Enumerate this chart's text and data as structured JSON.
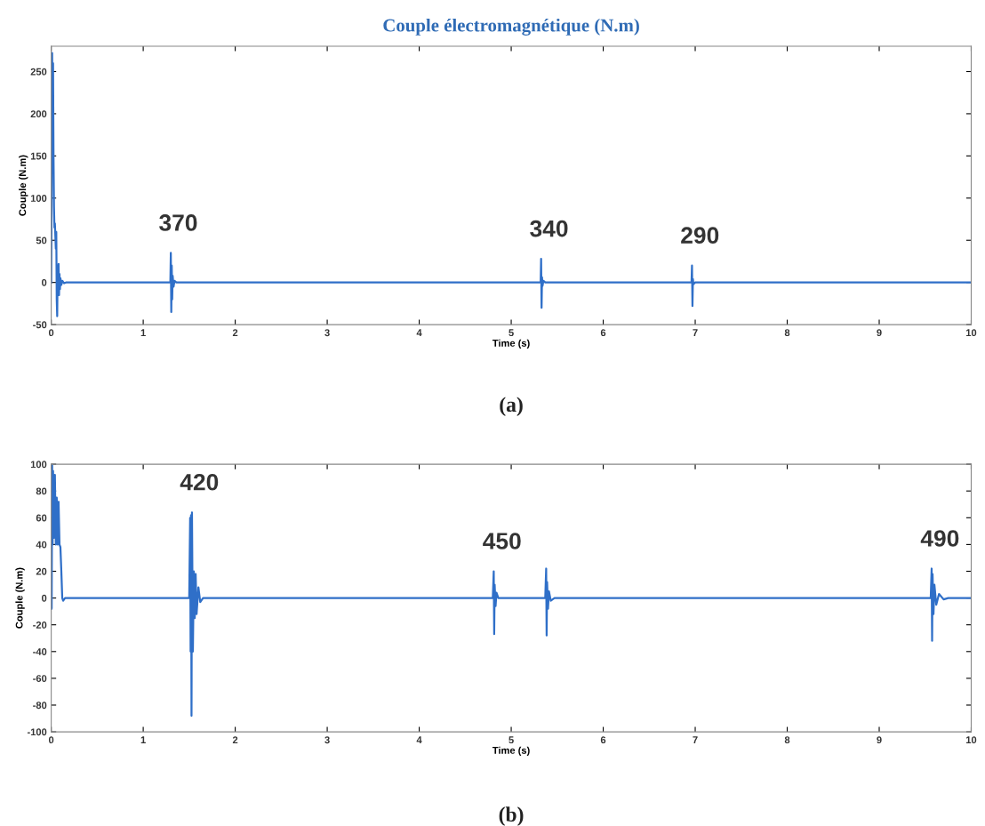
{
  "chart_data": [
    {
      "type": "line",
      "title": "Couple électromagnétique (N.m)",
      "xlabel": "Time (s)",
      "ylabel": "Couple (N.m)",
      "xlim": [
        0,
        10
      ],
      "xticks": [
        0,
        1,
        2,
        3,
        4,
        5,
        6,
        7,
        8,
        9,
        10
      ],
      "ylim": [
        -50,
        280
      ],
      "yticks": [
        -50,
        0,
        50,
        100,
        150,
        200,
        250
      ],
      "grid": false,
      "legend": false,
      "series": [
        {
          "color": "#2f6fc8",
          "x": [
            0,
            0.005,
            0.01,
            0.015,
            0.02,
            0.025,
            0.03,
            0.035,
            0.04,
            0.045,
            0.05,
            0.055,
            0.06,
            0.065,
            0.07,
            0.075,
            0.08,
            0.085,
            0.09,
            0.095,
            0.1,
            0.11,
            0.12,
            0.14,
            0.16,
            1.28,
            1.295,
            1.3,
            1.305,
            1.31,
            1.315,
            1.32,
            1.33,
            1.34,
            1.36,
            5.3,
            5.32,
            5.325,
            5.33,
            5.335,
            5.34,
            5.35,
            5.37,
            6.95,
            6.96,
            6.965,
            6.97,
            6.975,
            6.98,
            7.0,
            10
          ],
          "values": [
            0,
            120,
            272,
            200,
            260,
            150,
            90,
            65,
            70,
            55,
            40,
            60,
            -20,
            -40,
            20,
            -10,
            22,
            -15,
            10,
            -8,
            5,
            -3,
            2,
            -1,
            0,
            0,
            0,
            35,
            -35,
            20,
            -20,
            8,
            -5,
            2,
            0,
            0,
            0,
            28,
            -30,
            6,
            -4,
            2,
            0,
            0,
            0,
            20,
            -28,
            4,
            -2,
            0,
            0
          ]
        }
      ],
      "annotations": [
        {
          "text": "370",
          "x": 1.3,
          "y": 35
        },
        {
          "text": "340",
          "x": 5.33,
          "y": 28
        },
        {
          "text": "290",
          "x": 6.97,
          "y": 20
        },
        "(a)"
      ]
    },
    {
      "type": "line",
      "xlabel": "Time (s)",
      "ylabel": "Couple (N.m)",
      "xlim": [
        0,
        10
      ],
      "xticks": [
        0,
        1,
        2,
        3,
        4,
        5,
        6,
        7,
        8,
        9,
        10
      ],
      "ylim": [
        -100,
        100
      ],
      "yticks": [
        -100,
        -80,
        -60,
        -40,
        -20,
        0,
        20,
        40,
        60,
        80,
        100
      ],
      "grid": false,
      "legend": false,
      "series": [
        {
          "color": "#2f6fc8",
          "x": [
            0,
            0.005,
            0.01,
            0.015,
            0.02,
            0.03,
            0.04,
            0.05,
            0.06,
            0.07,
            0.08,
            0.09,
            0.1,
            0.11,
            0.12,
            0.13,
            0.15,
            1.5,
            1.51,
            1.515,
            1.52,
            1.525,
            1.53,
            1.54,
            1.55,
            1.56,
            1.57,
            1.58,
            1.6,
            1.62,
            1.65,
            4.8,
            4.81,
            4.815,
            4.82,
            4.83,
            4.84,
            4.86,
            4.9,
            5.37,
            5.38,
            5.385,
            5.39,
            5.4,
            5.41,
            5.43,
            5.47,
            9.56,
            9.57,
            9.575,
            9.58,
            9.59,
            9.6,
            9.62,
            9.65,
            9.7,
            9.75,
            10
          ],
          "values": [
            0,
            -8,
            100,
            40,
            95,
            45,
            92,
            40,
            75,
            40,
            72,
            40,
            38,
            20,
            0,
            -2,
            0,
            0,
            60,
            -40,
            62,
            -88,
            64,
            -40,
            20,
            -15,
            18,
            -12,
            8,
            -3,
            0,
            0,
            20,
            -27,
            10,
            -6,
            4,
            0,
            0,
            0,
            22,
            -28,
            12,
            -8,
            5,
            -2,
            0,
            0,
            22,
            -32,
            18,
            -12,
            10,
            -5,
            3,
            -1,
            0,
            0
          ]
        }
      ],
      "annotations": [
        {
          "text": "420",
          "x": 1.53,
          "y": 64
        },
        {
          "text": "450",
          "x": 4.82,
          "y": 20
        },
        {
          "text": "490",
          "x": 9.58,
          "y": 22
        },
        "(b)"
      ]
    }
  ]
}
